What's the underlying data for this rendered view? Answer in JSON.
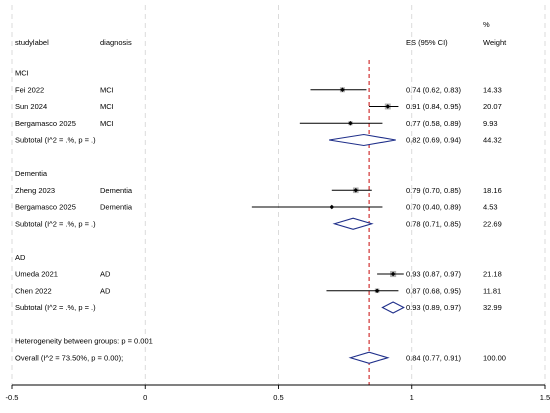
{
  "chart_data": {
    "type": "forest",
    "headers": {
      "study": "studylabel",
      "diagnosis": "diagnosis",
      "es": "ES (95% CI)",
      "weight_top": "%",
      "weight": "Weight"
    },
    "xaxis": {
      "min": -0.5,
      "max": 1.5,
      "ticks": [
        -0.5,
        0,
        0.5,
        1,
        1.5
      ],
      "tick_labels": [
        "-0.5",
        "0",
        "0.5",
        "1",
        "1.5"
      ]
    },
    "overall_line": 0.84,
    "rows": [
      {
        "kind": "group",
        "label": "MCI"
      },
      {
        "kind": "study",
        "label": "Fei 2022",
        "diagnosis": "MCI",
        "es": 0.74,
        "lo": 0.62,
        "hi": 0.83,
        "es_text": "0.74 (0.62, 0.83)",
        "weight": "14.33",
        "w": 14.33
      },
      {
        "kind": "study",
        "label": "Sun 2024",
        "diagnosis": "MCI",
        "es": 0.91,
        "lo": 0.84,
        "hi": 0.95,
        "es_text": "0.91 (0.84, 0.95)",
        "weight": "20.07",
        "w": 20.07
      },
      {
        "kind": "study",
        "label": "Bergamasco 2025",
        "diagnosis": "MCI",
        "es": 0.77,
        "lo": 0.58,
        "hi": 0.89,
        "es_text": "0.77 (0.58, 0.89)",
        "weight": "9.93",
        "w": 9.93
      },
      {
        "kind": "subtotal",
        "label": "Subtotal  (I^2 = .%, p = .)",
        "es": 0.82,
        "lo": 0.69,
        "hi": 0.94,
        "es_text": "0.82 (0.69, 0.94)",
        "weight": "44.32"
      },
      {
        "kind": "blank"
      },
      {
        "kind": "group",
        "label": "Dementia"
      },
      {
        "kind": "study",
        "label": "Zheng 2023",
        "diagnosis": "Dementia",
        "es": 0.79,
        "lo": 0.7,
        "hi": 0.85,
        "es_text": "0.79 (0.70, 0.85)",
        "weight": "18.16",
        "w": 18.16
      },
      {
        "kind": "study",
        "label": "Bergamasco 2025",
        "diagnosis": "Dementia",
        "es": 0.7,
        "lo": 0.4,
        "hi": 0.89,
        "es_text": "0.70 (0.40, 0.89)",
        "weight": "4.53",
        "w": 4.53
      },
      {
        "kind": "subtotal",
        "label": "Subtotal  (I^2 = .%, p = .)",
        "es": 0.78,
        "lo": 0.71,
        "hi": 0.85,
        "es_text": "0.78 (0.71, 0.85)",
        "weight": "22.69"
      },
      {
        "kind": "blank"
      },
      {
        "kind": "group",
        "label": "AD"
      },
      {
        "kind": "study",
        "label": "Umeda 2021",
        "diagnosis": "AD",
        "es": 0.93,
        "lo": 0.87,
        "hi": 0.97,
        "es_text": "0.93 (0.87, 0.97)",
        "weight": "21.18",
        "w": 21.18
      },
      {
        "kind": "study",
        "label": "Chen 2022",
        "diagnosis": "AD",
        "es": 0.87,
        "lo": 0.68,
        "hi": 0.95,
        "es_text": "0.87 (0.68, 0.95)",
        "weight": "11.81",
        "w": 11.81
      },
      {
        "kind": "subtotal",
        "label": "Subtotal  (I^2 = .%, p = .)",
        "es": 0.93,
        "lo": 0.89,
        "hi": 0.97,
        "es_text": "0.93 (0.89, 0.97)",
        "weight": "32.99"
      },
      {
        "kind": "blank"
      },
      {
        "kind": "note",
        "label": "Heterogeneity between groups: p = 0.001"
      },
      {
        "kind": "overall",
        "label": "Overall  (I^2 = 73.50%, p = 0.00);",
        "es": 0.84,
        "lo": 0.77,
        "hi": 0.91,
        "es_text": "0.84 (0.77, 0.91)",
        "weight": "100.00"
      }
    ],
    "colors": {
      "diamond": "#1f2f8a",
      "reference_line": "#cc1f1f",
      "weight_box": "#b3b3b3",
      "grid": "#d3d3d3",
      "text": "#000000"
    }
  }
}
